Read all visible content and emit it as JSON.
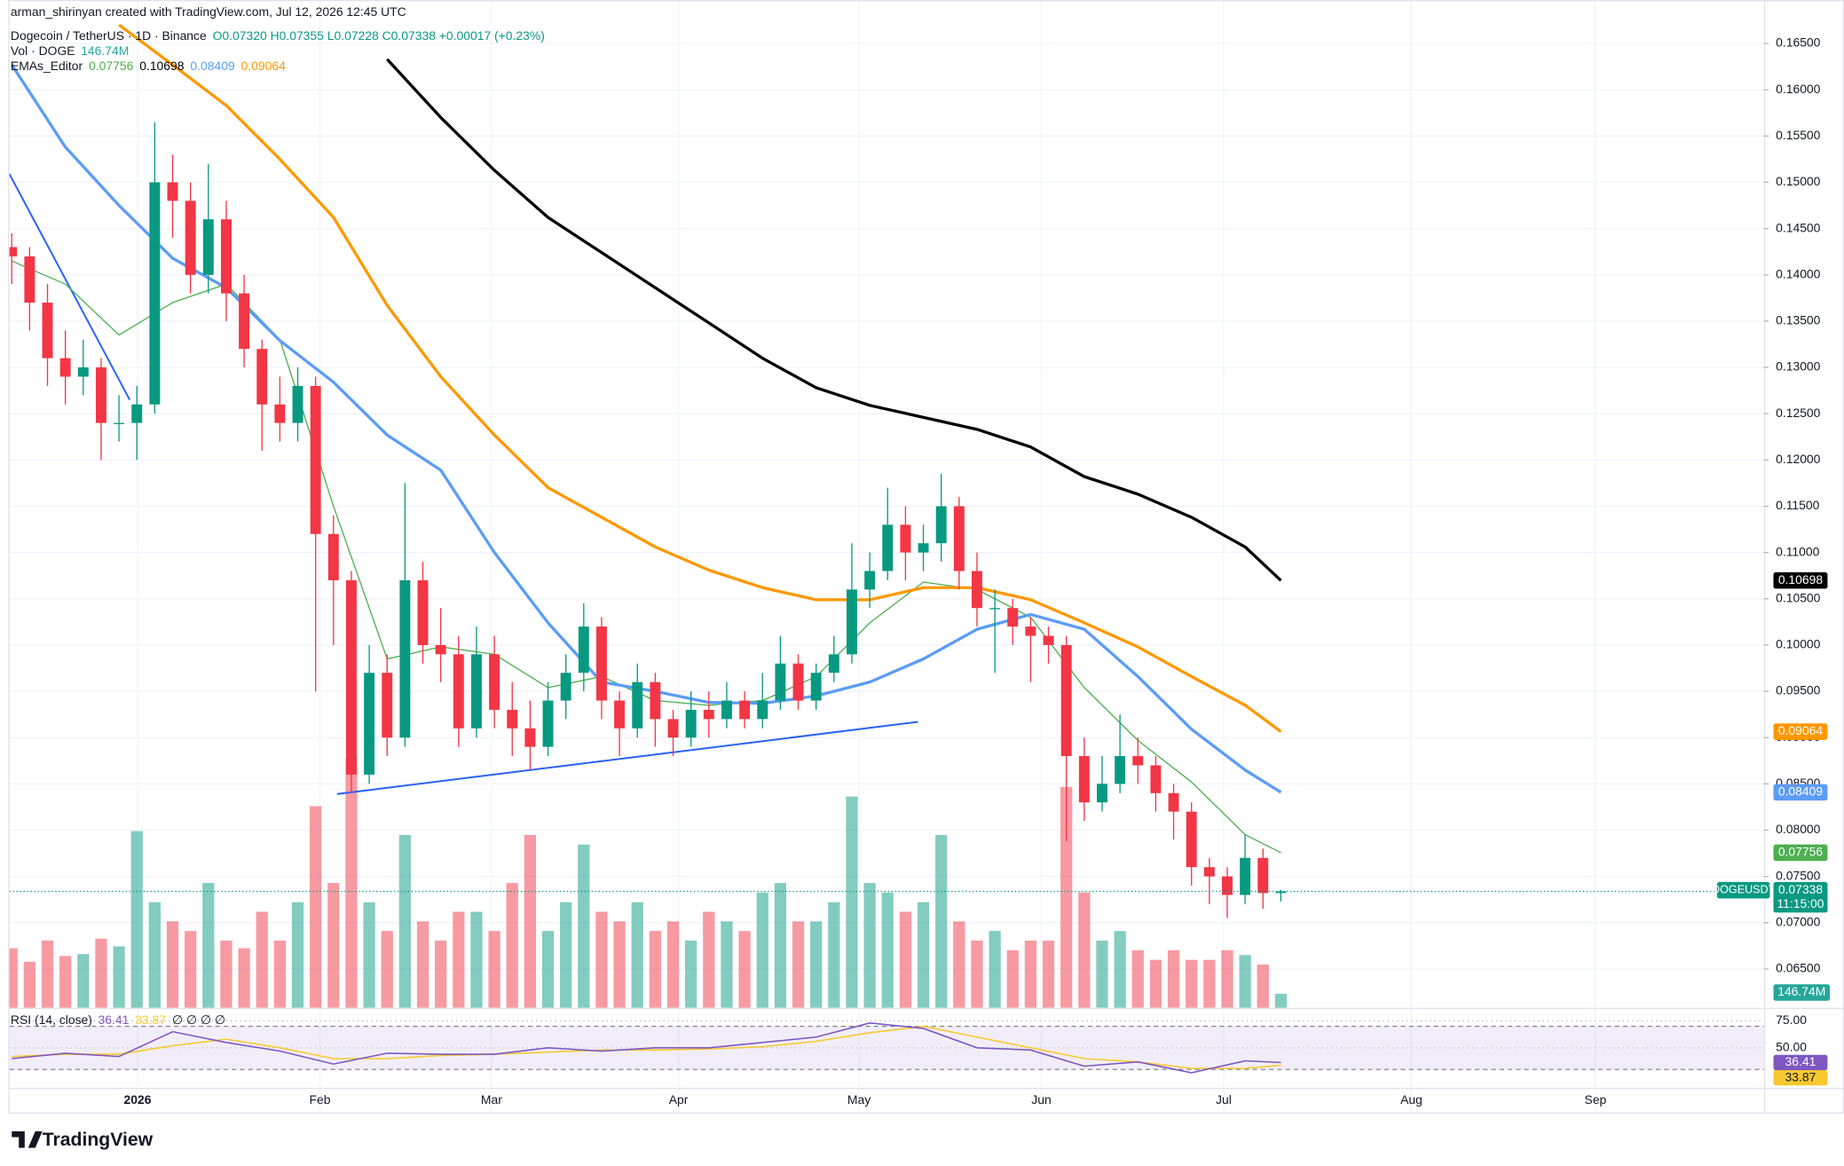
{
  "chart_data": {
    "type": "candlestick",
    "header": {
      "author": "arman_shirinyan created with TradingView.com, Jul 12, 2026 12:45 UTC",
      "symbol": "Dogecoin / TetherUS · 1D · Binance",
      "ohlc": "O0.07320 H0.07355 L0.07228 C0.07338 +0.00017 (+0.23%)",
      "vol_name": "Vol · DOGE",
      "ema_name": "EMAs_Editor",
      "logo": "TradingView"
    },
    "up_color": "#089981",
    "down_color": "#f23645",
    "candles": [
      [
        0.143,
        0.1445,
        0.139,
        0.142
      ],
      [
        0.142,
        0.143,
        0.134,
        0.137
      ],
      [
        0.137,
        0.139,
        0.128,
        0.131
      ],
      [
        0.131,
        0.134,
        0.126,
        0.129
      ],
      [
        0.129,
        0.133,
        0.127,
        0.13
      ],
      [
        0.13,
        0.131,
        0.12,
        0.124
      ],
      [
        0.124,
        0.127,
        0.122,
        0.124
      ],
      [
        0.124,
        0.128,
        0.12,
        0.126
      ],
      [
        0.126,
        0.1565,
        0.125,
        0.15
      ],
      [
        0.15,
        0.153,
        0.144,
        0.148
      ],
      [
        0.148,
        0.15,
        0.138,
        0.14
      ],
      [
        0.14,
        0.152,
        0.138,
        0.146
      ],
      [
        0.146,
        0.148,
        0.135,
        0.138
      ],
      [
        0.138,
        0.14,
        0.13,
        0.132
      ],
      [
        0.132,
        0.133,
        0.121,
        0.126
      ],
      [
        0.126,
        0.129,
        0.122,
        0.124
      ],
      [
        0.124,
        0.13,
        0.122,
        0.128
      ],
      [
        0.128,
        0.129,
        0.095,
        0.112
      ],
      [
        0.112,
        0.114,
        0.1,
        0.107
      ],
      [
        0.107,
        0.108,
        0.084,
        0.086
      ],
      [
        0.086,
        0.1,
        0.085,
        0.097
      ],
      [
        0.097,
        0.099,
        0.088,
        0.09
      ],
      [
        0.09,
        0.1175,
        0.089,
        0.107
      ],
      [
        0.107,
        0.109,
        0.098,
        0.1
      ],
      [
        0.1,
        0.104,
        0.096,
        0.099
      ],
      [
        0.099,
        0.101,
        0.089,
        0.091
      ],
      [
        0.091,
        0.102,
        0.09,
        0.099
      ],
      [
        0.099,
        0.101,
        0.091,
        0.093
      ],
      [
        0.093,
        0.096,
        0.088,
        0.091
      ],
      [
        0.091,
        0.094,
        0.0865,
        0.089
      ],
      [
        0.089,
        0.096,
        0.088,
        0.094
      ],
      [
        0.094,
        0.099,
        0.092,
        0.097
      ],
      [
        0.097,
        0.1045,
        0.095,
        0.102
      ],
      [
        0.102,
        0.103,
        0.092,
        0.094
      ],
      [
        0.094,
        0.095,
        0.088,
        0.091
      ],
      [
        0.091,
        0.098,
        0.09,
        0.096
      ],
      [
        0.096,
        0.097,
        0.089,
        0.092
      ],
      [
        0.092,
        0.093,
        0.088,
        0.09
      ],
      [
        0.09,
        0.095,
        0.089,
        0.093
      ],
      [
        0.093,
        0.095,
        0.09,
        0.092
      ],
      [
        0.092,
        0.096,
        0.091,
        0.094
      ],
      [
        0.094,
        0.095,
        0.091,
        0.092
      ],
      [
        0.092,
        0.097,
        0.091,
        0.094
      ],
      [
        0.094,
        0.101,
        0.093,
        0.098
      ],
      [
        0.098,
        0.099,
        0.093,
        0.094
      ],
      [
        0.094,
        0.098,
        0.093,
        0.097
      ],
      [
        0.097,
        0.101,
        0.096,
        0.099
      ],
      [
        0.099,
        0.111,
        0.098,
        0.106
      ],
      [
        0.106,
        0.11,
        0.104,
        0.108
      ],
      [
        0.108,
        0.117,
        0.107,
        0.113
      ],
      [
        0.113,
        0.115,
        0.107,
        0.11
      ],
      [
        0.11,
        0.113,
        0.108,
        0.111
      ],
      [
        0.111,
        0.1185,
        0.109,
        0.115
      ],
      [
        0.115,
        0.116,
        0.106,
        0.108
      ],
      [
        0.108,
        0.11,
        0.102,
        0.104
      ],
      [
        0.104,
        0.106,
        0.097,
        0.104
      ],
      [
        0.104,
        0.105,
        0.1,
        0.102
      ],
      [
        0.102,
        0.103,
        0.096,
        0.101
      ],
      [
        0.101,
        0.102,
        0.098,
        0.1
      ],
      [
        0.1,
        0.101,
        0.0788,
        0.088
      ],
      [
        0.088,
        0.09,
        0.081,
        0.083
      ],
      [
        0.083,
        0.088,
        0.082,
        0.085
      ],
      [
        0.085,
        0.0925,
        0.084,
        0.088
      ],
      [
        0.088,
        0.09,
        0.085,
        0.087
      ],
      [
        0.087,
        0.088,
        0.082,
        0.084
      ],
      [
        0.084,
        0.085,
        0.079,
        0.082
      ],
      [
        0.082,
        0.083,
        0.074,
        0.076
      ],
      [
        0.076,
        0.077,
        0.072,
        0.075
      ],
      [
        0.075,
        0.076,
        0.0705,
        0.073
      ],
      [
        0.073,
        0.0795,
        0.072,
        0.077
      ],
      [
        0.077,
        0.078,
        0.0715,
        0.0732
      ],
      [
        0.0732,
        0.07355,
        0.07228,
        0.07338
      ]
    ],
    "last_price": {
      "symbol": "DOGEUSDT",
      "label": "0.07338",
      "countdown": "11:15:00",
      "color": "#089981"
    },
    "volume": {
      "values": [
        620,
        480,
        700,
        540,
        560,
        720,
        640,
        1840,
        1100,
        900,
        800,
        1300,
        700,
        620,
        1000,
        700,
        1100,
        2100,
        1300,
        2600,
        1100,
        800,
        1800,
        900,
        700,
        1000,
        1000,
        800,
        1300,
        1800,
        800,
        1100,
        1700,
        1000,
        900,
        1100,
        800,
        900,
        700,
        1000,
        900,
        800,
        1200,
        1300,
        900,
        900,
        1100,
        2200,
        1300,
        1200,
        1000,
        1100,
        1800,
        900,
        700,
        800,
        600,
        700,
        700,
        2300,
        1200,
        700,
        800,
        600,
        500,
        600,
        500,
        500,
        600,
        550,
        450,
        146.74
      ],
      "ylim": [
        0,
        3000
      ],
      "last_label": "146.74M"
    },
    "ema": [
      {
        "color": "#4caf50",
        "width": 1,
        "x": [
          0,
          3,
          6,
          9,
          12,
          15,
          18,
          21,
          24,
          27,
          30,
          33,
          36,
          39,
          42,
          45,
          48,
          51,
          54,
          57,
          60,
          63,
          66,
          69,
          71
        ],
        "values": [
          0.1415,
          0.139,
          0.1335,
          0.137,
          0.139,
          0.133,
          0.115,
          0.0985,
          0.0998,
          0.099,
          0.0954,
          0.0966,
          0.094,
          0.0935,
          0.094,
          0.0966,
          0.1024,
          0.1068,
          0.106,
          0.103,
          0.0954,
          0.0897,
          0.0852,
          0.0795,
          0.07756
        ],
        "last_label": "0.07756"
      },
      {
        "color": "#000000",
        "width": 2.5,
        "x": [
          21,
          24,
          27,
          30,
          33,
          36,
          39,
          42,
          45,
          48,
          51,
          54,
          57,
          60,
          63,
          66,
          69,
          71
        ],
        "values": [
          0.1633,
          0.157,
          0.1513,
          0.1462,
          0.1424,
          0.1386,
          0.1348,
          0.131,
          0.1278,
          0.1259,
          0.1246,
          0.1233,
          0.1214,
          0.1182,
          0.1163,
          0.1138,
          0.1106,
          0.10698
        ],
        "last_label": "0.10698"
      },
      {
        "color": "#5b9cf6",
        "width": 2.5,
        "x": [
          0,
          3,
          6,
          9,
          12,
          15,
          18,
          21,
          24,
          27,
          30,
          33,
          36,
          39,
          42,
          45,
          48,
          51,
          54,
          57,
          60,
          63,
          66,
          69,
          71
        ],
        "values": [
          0.1627,
          0.1538,
          0.1475,
          0.1418,
          0.1386,
          0.1329,
          0.1284,
          0.1227,
          0.1189,
          0.11,
          0.1024,
          0.096,
          0.095,
          0.0938,
          0.0937,
          0.0945,
          0.096,
          0.0985,
          0.1017,
          0.1033,
          0.1017,
          0.0966,
          0.0909,
          0.0865,
          0.08409
        ],
        "last_label": "0.08409"
      },
      {
        "color": "#ff9800",
        "width": 2.5,
        "x": [
          6,
          9,
          12,
          15,
          18,
          21,
          24,
          27,
          30,
          33,
          36,
          39,
          42,
          45,
          48,
          51,
          54,
          57,
          60,
          63,
          66,
          69,
          71
        ],
        "values": [
          0.167,
          0.1627,
          0.1583,
          0.1525,
          0.1462,
          0.1367,
          0.129,
          0.1227,
          0.117,
          0.1138,
          0.1106,
          0.1081,
          0.1062,
          0.1049,
          0.1049,
          0.1062,
          0.1062,
          0.1049,
          0.1024,
          0.0998,
          0.0966,
          0.0935,
          0.09064
        ],
        "last_label": "0.09064"
      }
    ],
    "trendlines": [
      {
        "color": "#2962ff",
        "x": [
          18.2,
          50.7
        ],
        "values": [
          0.0839,
          0.0917
        ]
      },
      {
        "color": "#2962ff",
        "x": [
          -0.13,
          6.6
        ],
        "values": [
          0.1509,
          0.1265
        ]
      }
    ],
    "xlim": [
      -0.13,
      98.03
    ],
    "ylim": [
      0.0608,
      0.1697
    ],
    "yticks": [
      {
        "value": 0.065,
        "label": "0.06500"
      },
      {
        "value": 0.07,
        "label": "0.07000"
      },
      {
        "value": 0.075,
        "label": "0.07500"
      },
      {
        "value": 0.08,
        "label": "0.08000"
      },
      {
        "value": 0.085,
        "label": "0.08500"
      },
      {
        "value": 0.09,
        "label": "0.09000"
      },
      {
        "value": 0.095,
        "label": "0.09500"
      },
      {
        "value": 0.1,
        "label": "0.10000"
      },
      {
        "value": 0.105,
        "label": "0.10500"
      },
      {
        "value": 0.11,
        "label": "0.11000"
      },
      {
        "value": 0.115,
        "label": "0.11500"
      },
      {
        "value": 0.12,
        "label": "0.12000"
      },
      {
        "value": 0.125,
        "label": "0.12500"
      },
      {
        "value": 0.13,
        "label": "0.13000"
      },
      {
        "value": 0.135,
        "label": "0.13500"
      },
      {
        "value": 0.14,
        "label": "0.14000"
      },
      {
        "value": 0.145,
        "label": "0.14500"
      },
      {
        "value": 0.15,
        "label": "0.15000"
      },
      {
        "value": 0.155,
        "label": "0.15500"
      },
      {
        "value": 0.16,
        "label": "0.16000"
      },
      {
        "value": 0.165,
        "label": "0.16500"
      }
    ],
    "xticks": [
      {
        "value": 7.04,
        "label": "2026"
      },
      {
        "value": 17.24,
        "label": "Feb"
      },
      {
        "value": 26.84,
        "label": "Mar"
      },
      {
        "value": 37.3,
        "label": "Apr"
      },
      {
        "value": 47.4,
        "label": "May"
      },
      {
        "value": 57.6,
        "label": "Jun"
      },
      {
        "value": 67.8,
        "label": "Jul"
      },
      {
        "value": 78.3,
        "label": "Aug"
      },
      {
        "value": 88.6,
        "label": "Sep"
      }
    ],
    "grid": true,
    "rsi": {
      "label": "RSI (14, close)",
      "flags": "∅ ∅ ∅ ∅",
      "color": "#7e57c2",
      "ma_color": "#f7c930",
      "x": [
        0,
        3,
        6,
        9,
        12,
        15,
        18,
        21,
        24,
        27,
        30,
        33,
        36,
        39,
        42,
        45,
        48,
        51,
        54,
        57,
        60,
        63,
        66,
        69,
        71
      ],
      "values": [
        40,
        45,
        42,
        65,
        55,
        47,
        35,
        45,
        44,
        44,
        50,
        47,
        50,
        50,
        55,
        60,
        73,
        68,
        50,
        48,
        33,
        37,
        27,
        38,
        36.41
      ],
      "ma": [
        42,
        44,
        44,
        52,
        58,
        50,
        40,
        40,
        43,
        44,
        46,
        48,
        48,
        49,
        51,
        56,
        64,
        70,
        60,
        50,
        40,
        37,
        31,
        31,
        33.87
      ],
      "ylim": [
        13,
        86
      ],
      "yticks": [
        {
          "value": 75,
          "label": "75.00"
        },
        {
          "value": 50,
          "label": "50.00"
        }
      ],
      "bands": [
        70,
        30
      ]
    }
  }
}
